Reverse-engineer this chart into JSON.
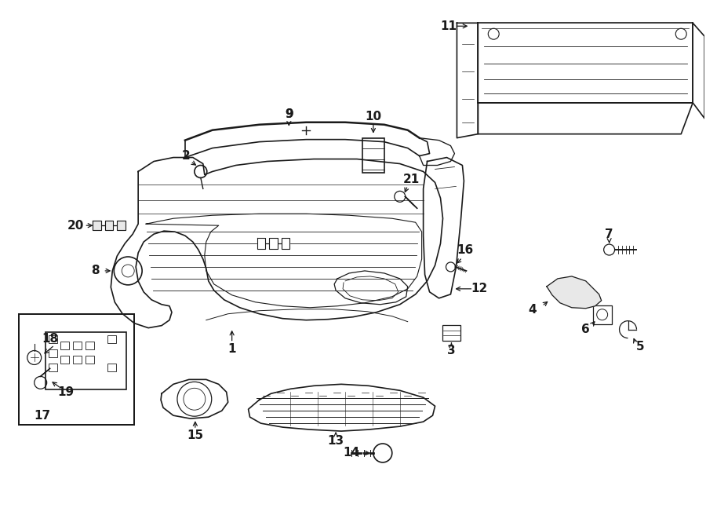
{
  "bg_color": "#ffffff",
  "line_color": "#1a1a1a",
  "fig_width": 9.0,
  "fig_height": 6.61,
  "dpi": 100,
  "label_fs": 11
}
